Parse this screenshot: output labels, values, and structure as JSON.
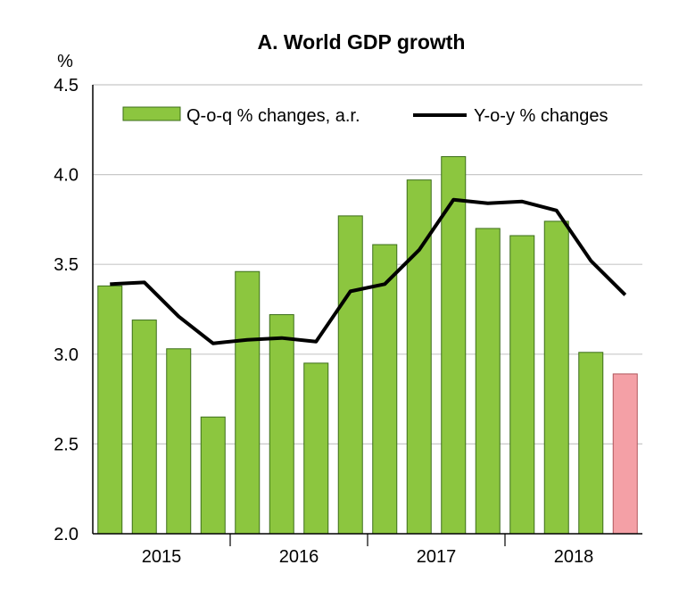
{
  "chart_data": {
    "type": "bar",
    "title": "A. World GDP growth",
    "ylabel": "%",
    "xlabel": "",
    "ylim": [
      2.0,
      4.5
    ],
    "yticks": [
      "2.0",
      "2.5",
      "3.0",
      "3.5",
      "4.0",
      "4.5"
    ],
    "year_labels": [
      "2015",
      "2016",
      "2017",
      "2018"
    ],
    "categories": [
      "2015Q1",
      "2015Q2",
      "2015Q3",
      "2015Q4",
      "2016Q1",
      "2016Q2",
      "2016Q3",
      "2016Q4",
      "2017Q1",
      "2017Q2",
      "2017Q3",
      "2017Q4",
      "2018Q1",
      "2018Q2",
      "2018Q3",
      "2018Q4"
    ],
    "grid": true,
    "legend_position": "top",
    "series": [
      {
        "name": "Q-o-q % changes, a.r.",
        "kind": "bar",
        "color": "#8cc63f",
        "highlight_color": "#f4a0a6",
        "highlight_index": 15,
        "values": [
          3.38,
          3.19,
          3.03,
          2.65,
          3.46,
          3.22,
          2.95,
          3.77,
          3.61,
          3.97,
          4.1,
          3.7,
          3.66,
          3.74,
          3.01,
          2.89
        ]
      },
      {
        "name": "Y-o-y % changes",
        "kind": "line",
        "color": "#000000",
        "values": [
          3.39,
          3.4,
          3.21,
          3.06,
          3.08,
          3.09,
          3.07,
          3.35,
          3.39,
          3.58,
          3.86,
          3.84,
          3.85,
          3.8,
          3.52,
          3.33
        ]
      }
    ]
  }
}
